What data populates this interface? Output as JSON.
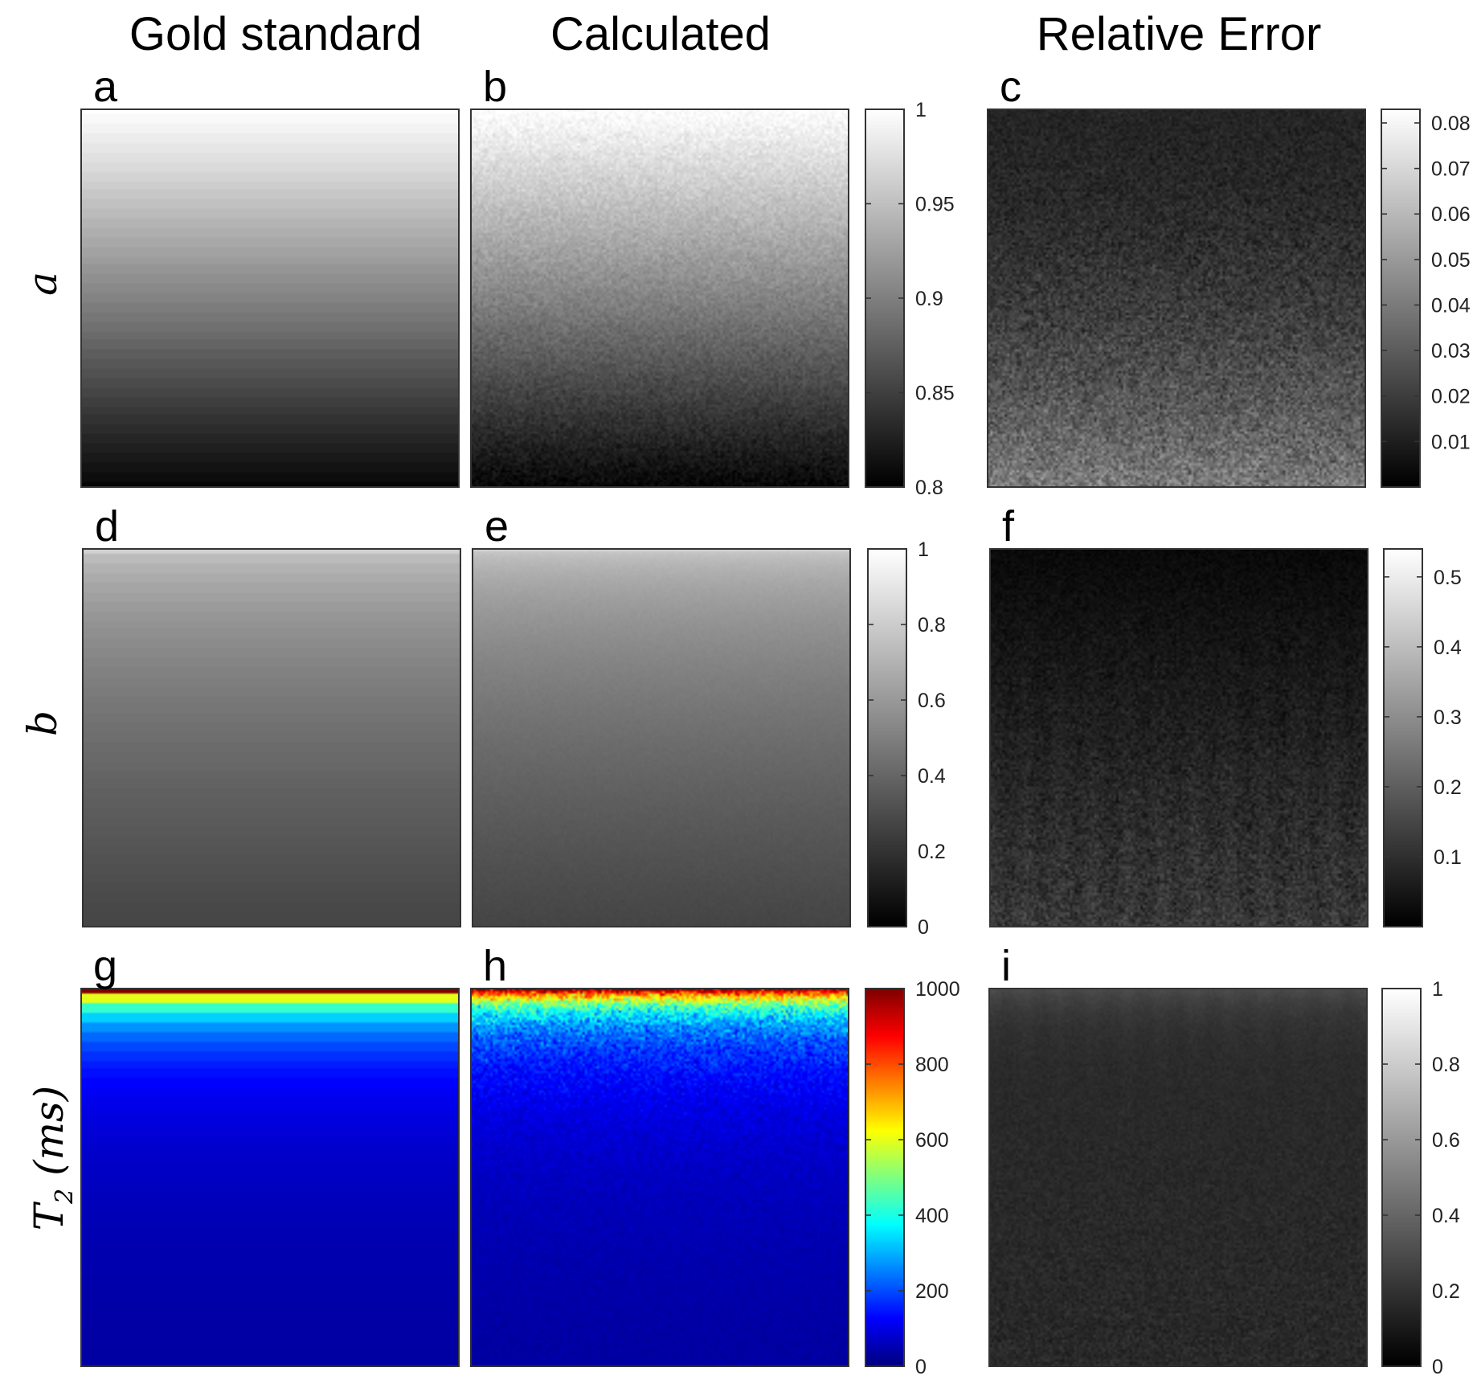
{
  "figure": {
    "column_titles": [
      "Gold standard",
      "Calculated",
      "Relative Error"
    ],
    "row_labels": [
      {
        "main": "a",
        "sub": ""
      },
      {
        "main": "b",
        "sub": ""
      },
      {
        "main": "T",
        "sub": "2",
        "suffix": " (ms)"
      }
    ]
  },
  "chart_data": [
    {
      "type": "heatmap",
      "panel": "a",
      "content": "gold standard map of parameter a (smooth vertical gradient, bright top to dark bottom)",
      "colormap": "gray",
      "value_range": [
        0.8,
        1.0
      ],
      "noise": 0
    },
    {
      "type": "heatmap",
      "panel": "b",
      "content": "calculated map of parameter a (noisy vertical gradient)",
      "colormap": "gray",
      "value_range": [
        0.8,
        1.0
      ],
      "noise": 0.012,
      "colorbar": {
        "ticks": [
          0.8,
          0.85,
          0.9,
          0.95,
          1
        ],
        "tick_labels": [
          "0.8",
          "0.85",
          "0.9",
          "0.95",
          "1"
        ],
        "range": [
          0.8,
          1.0
        ]
      }
    },
    {
      "type": "heatmap",
      "panel": "c",
      "content": "relative error of a",
      "colormap": "gray",
      "value_range": [
        0.0,
        0.083
      ],
      "noise": 0.01,
      "colorbar": {
        "ticks": [
          0.01,
          0.02,
          0.03,
          0.04,
          0.05,
          0.06,
          0.07,
          0.08
        ],
        "tick_labels": [
          "0.01",
          "0.02",
          "0.03",
          "0.04",
          "0.05",
          "0.06",
          "0.07",
          "0.08"
        ],
        "range": [
          0.0,
          0.083
        ]
      }
    },
    {
      "type": "heatmap",
      "panel": "d",
      "content": "gold standard map of parameter b",
      "colormap": "gray",
      "value_range": [
        0.0,
        1.0
      ],
      "noise": 0
    },
    {
      "type": "heatmap",
      "panel": "e",
      "content": "calculated map of parameter b",
      "colormap": "gray",
      "value_range": [
        0.0,
        1.0
      ],
      "noise": 0.01,
      "colorbar": {
        "ticks": [
          0,
          0.2,
          0.4,
          0.6,
          0.8,
          1
        ],
        "tick_labels": [
          "0",
          "0.2",
          "0.4",
          "0.6",
          "0.8",
          "1"
        ],
        "range": [
          0.0,
          1.0
        ]
      }
    },
    {
      "type": "heatmap",
      "panel": "f",
      "content": "relative error of b",
      "colormap": "gray",
      "value_range": [
        0.0,
        0.54
      ],
      "noise": 0.04,
      "colorbar": {
        "ticks": [
          0.1,
          0.2,
          0.3,
          0.4,
          0.5
        ],
        "tick_labels": [
          "0.1",
          "0.2",
          "0.3",
          "0.4",
          "0.5"
        ],
        "range": [
          0.0,
          0.54
        ]
      }
    },
    {
      "type": "heatmap",
      "panel": "g",
      "content": "gold standard T2 map",
      "colormap": "jet",
      "value_range": [
        0,
        1000
      ],
      "noise": 0
    },
    {
      "type": "heatmap",
      "panel": "h",
      "content": "calculated T2 map",
      "colormap": "jet",
      "value_range": [
        0,
        1000
      ],
      "noise": 70,
      "colorbar": {
        "ticks": [
          0,
          200,
          400,
          600,
          800,
          1000
        ],
        "tick_labels": [
          "0",
          "200",
          "400",
          "600",
          "800",
          "1000"
        ],
        "range": [
          0,
          1000
        ]
      }
    },
    {
      "type": "heatmap",
      "panel": "i",
      "content": "relative error of T2",
      "colormap": "gray",
      "value_range": [
        0.0,
        1.0
      ],
      "noise": 0.04,
      "colorbar": {
        "ticks": [
          0,
          0.2,
          0.4,
          0.6,
          0.8,
          1
        ],
        "tick_labels": [
          "0",
          "0.2",
          "0.4",
          "0.6",
          "0.8",
          "1"
        ],
        "range": [
          0.0,
          1.0
        ]
      }
    }
  ]
}
